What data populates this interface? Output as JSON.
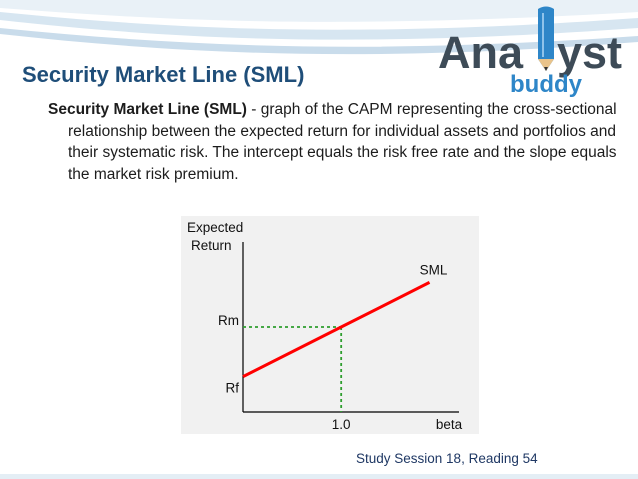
{
  "slide": {
    "title": "Security Market Line (SML)",
    "body_term": "Security Market Line (SML)",
    "body_rest": " - graph of the CAPM representing the cross-sectional relationship between the expected return for individual assets and portfolios and their systematic risk. The intercept equals the risk free rate and the slope equals the market risk premium.",
    "footer": "Study Session 18, Reading 54"
  },
  "logo": {
    "word_left": "Ana",
    "word_right": "yst",
    "sub": "buddy"
  },
  "colors": {
    "title": "#1f4e79",
    "sml_line": "#ff0000",
    "guide_lines": "#2e9e2e",
    "logo_pencil": "#2e86c8"
  },
  "chart_data": {
    "type": "line",
    "ylabel_lines": [
      "Expected",
      "Return"
    ],
    "xlabel": "beta",
    "line_label": "SML",
    "y_ticks": [
      "Rf",
      "Rm"
    ],
    "x_ticks": [
      "1.0"
    ],
    "xlim": [
      0,
      2.2
    ],
    "ylim": [
      0,
      1.2
    ],
    "rf": 0.25,
    "rm": 0.6,
    "beta_market": 1.0,
    "series": [
      {
        "x": [
          0,
          1.0,
          1.9
        ],
        "y": [
          0.25,
          0.6,
          0.915
        ]
      }
    ],
    "grid": false
  }
}
